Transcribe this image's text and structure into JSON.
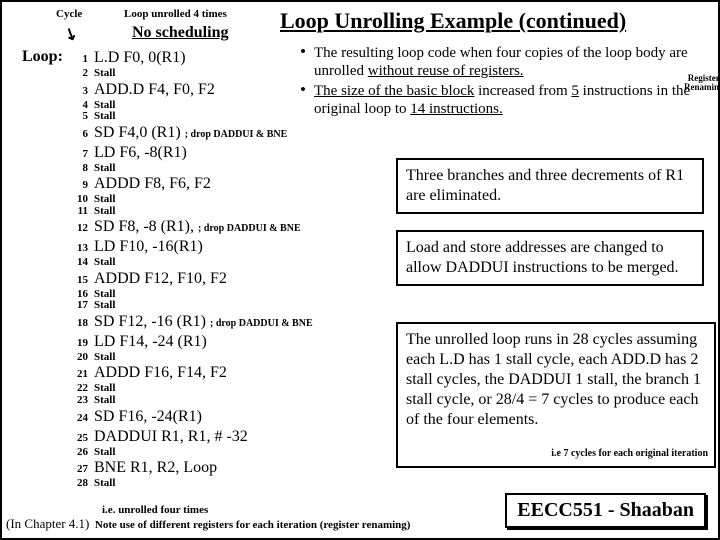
{
  "title": "Loop Unrolling Example (continued)",
  "labels": {
    "cycle": "Cycle",
    "unrolled": "Loop unrolled 4 times",
    "nosched": "No scheduling",
    "loop": "Loop:"
  },
  "code": [
    {
      "c": "1",
      "t": "L.D       F0, 0(R1)",
      "sz": "big"
    },
    {
      "c": "2",
      "t": "Stall",
      "sz": "sm"
    },
    {
      "c": "3",
      "t": "ADD.D  F4, F0, F2",
      "sz": "big"
    },
    {
      "c": "4",
      "t": "Stall",
      "sz": "sm"
    },
    {
      "c": "5",
      "t": "Stall",
      "sz": "sm"
    },
    {
      "c": "6",
      "t": "SD        F4,0 (R1)",
      "sz": "big",
      "a": "; drop DADDUI & BNE"
    },
    {
      "c": "7",
      "t": "LD        F6, -8(R1)",
      "sz": "big"
    },
    {
      "c": "8",
      "t": "Stall",
      "sz": "sm"
    },
    {
      "c": "9",
      "t": "ADDD  F8, F6, F2",
      "sz": "big"
    },
    {
      "c": "10",
      "t": "Stall",
      "sz": "sm"
    },
    {
      "c": "11",
      "t": "Stall",
      "sz": "sm"
    },
    {
      "c": "12",
      "t": "SD       F8, -8 (R1),",
      "sz": "big",
      "a": "; drop DADDUI & BNE"
    },
    {
      "c": "13",
      "t": "LD       F10, -16(R1)",
      "sz": "big"
    },
    {
      "c": "14",
      "t": "Stall",
      "sz": "sm"
    },
    {
      "c": "15",
      "t": "ADDD  F12, F10, F2",
      "sz": "big"
    },
    {
      "c": "16",
      "t": "Stall",
      "sz": "sm"
    },
    {
      "c": "17",
      "t": "Stall",
      "sz": "sm"
    },
    {
      "c": "18",
      "t": "SD       F12, -16 (R1)",
      "sz": "big",
      "a": "; drop DADDUI  & BNE"
    },
    {
      "c": "19",
      "t": "LD       F14, -24 (R1)",
      "sz": "big"
    },
    {
      "c": "20",
      "t": "Stall",
      "sz": "sm"
    },
    {
      "c": "21",
      "t": "ADDD   F16, F14, F2",
      "sz": "big"
    },
    {
      "c": "22",
      "t": "Stall",
      "sz": "sm"
    },
    {
      "c": "23",
      "t": "Stall",
      "sz": "sm"
    },
    {
      "c": "24",
      "t": "SD          F16, -24(R1)",
      "sz": "big"
    },
    {
      "c": "25",
      "t": "DADDUI   R1, R1, # -32",
      "sz": "big"
    },
    {
      "c": "26",
      "t": "Stall",
      "sz": "sm"
    },
    {
      "c": "27",
      "t": "BNE        R1, R2,  Loop",
      "sz": "big"
    },
    {
      "c": "28",
      "t": "Stall",
      "sz": "sm"
    }
  ],
  "bullet1_a": "The resulting loop code when four copies of the loop body are unrolled ",
  "bullet1_b": "without reuse of registers.",
  "bullet2_a": "The size of the basic block",
  "bullet2_b": " increased from ",
  "bullet2_c": "5",
  "bullet2_d": " instructions in the original loop to ",
  "bullet2_e": "14 instructions.",
  "box1": "Three branches and three decrements of R1 are eliminated.",
  "box2": "Load and store addresses are changed to allow DADDUI instructions to be merged.",
  "box3": "The unrolled loop runs in 28 cycles assuming each L.D has  1 stall cycle,  each ADD.D  has 2 stall cycles, the DADDUI  1 stall,  the branch 1 stall cycle,  or 28/4 = 7 cycles to produce each of the four elements.",
  "box3_note": "i.e 7 cycles  for each original iteration",
  "reg_rename": "Register Renaming",
  "footer_box": "EECC551 - Shaaban",
  "footer_l1": "i.e. unrolled four times",
  "footer_l2a": "(In  Chapter 4.1)",
  "footer_l2b": "Note use of different registers for each iteration (register renaming)"
}
